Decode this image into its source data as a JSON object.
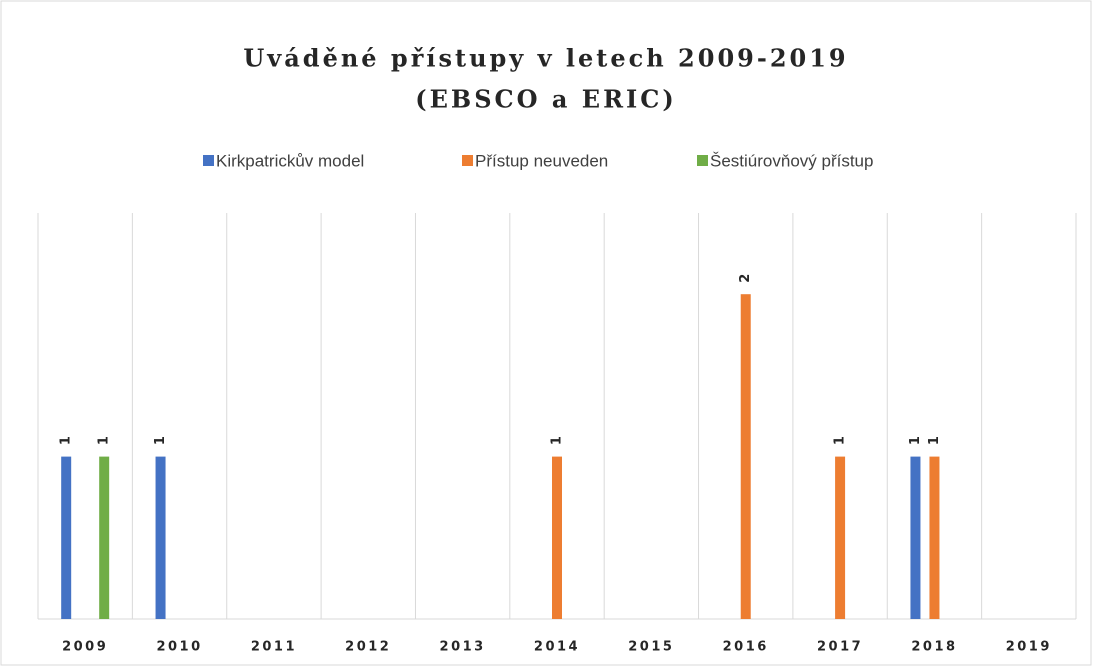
{
  "chart_data": {
    "type": "bar",
    "title": "Uváděné přístupy v letech 2009-2019",
    "subtitle": "(EBSCO a ERIC)",
    "categories": [
      "2009",
      "2010",
      "2011",
      "2012",
      "2013",
      "2014",
      "2015",
      "2016",
      "2017",
      "2018",
      "2019"
    ],
    "series": [
      {
        "name": "Kirkpatrickův model",
        "color": "#4472c4",
        "values": [
          1,
          1,
          null,
          null,
          null,
          null,
          null,
          null,
          null,
          1,
          null
        ]
      },
      {
        "name": "Přístup neuveden",
        "color": "#ed7d31",
        "values": [
          null,
          null,
          null,
          null,
          null,
          1,
          null,
          2,
          1,
          1,
          null
        ]
      },
      {
        "name": "Šestiúrovňový přístup",
        "color": "#70ad47",
        "values": [
          1,
          null,
          null,
          null,
          null,
          null,
          null,
          null,
          null,
          null,
          null
        ]
      }
    ],
    "ylim": [
      0,
      2.5
    ],
    "grid": true,
    "legend": "top"
  }
}
